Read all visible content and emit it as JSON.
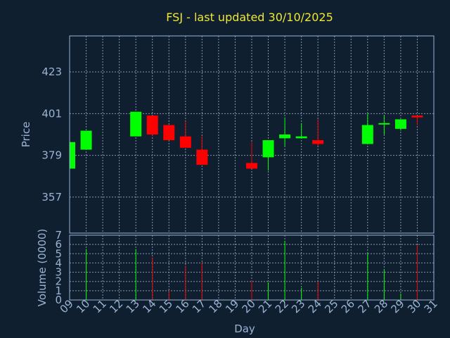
{
  "chart_data": {
    "type": "candlestick",
    "title": "FSJ - last updated 30/10/2025",
    "ylabel": "Price",
    "volume_label": "Volume (0000)",
    "xlabel": "Day",
    "price_ticks": [
      357,
      379,
      401,
      423
    ],
    "price_ylim": [
      338,
      442
    ],
    "volume_ticks": [
      0,
      1,
      2,
      3,
      4,
      5,
      6,
      7
    ],
    "volume_ylim": [
      0,
      7
    ],
    "x_ticks": [
      "09",
      "10",
      "11",
      "12",
      "13",
      "14",
      "15",
      "16",
      "17",
      "18",
      "19",
      "20",
      "21",
      "22",
      "23",
      "24",
      "25",
      "26",
      "27",
      "28",
      "29",
      "30",
      "31"
    ],
    "colors": {
      "up": "#00ff00",
      "down": "#ff0000",
      "background": "#0f1f30",
      "title": "#f0e830",
      "axis": "#9ab4d4"
    },
    "candles": [
      {
        "day": 9,
        "open": 372,
        "high": 386,
        "low": 372,
        "close": 386
      },
      {
        "day": 10,
        "open": 382,
        "high": 392,
        "low": 382,
        "close": 392
      },
      {
        "day": 13,
        "open": 389,
        "high": 402,
        "low": 389,
        "close": 402
      },
      {
        "day": 14,
        "open": 400,
        "high": 400,
        "low": 389,
        "close": 390
      },
      {
        "day": 15,
        "open": 395,
        "high": 395,
        "low": 387,
        "close": 387
      },
      {
        "day": 16,
        "open": 389,
        "high": 397,
        "low": 383,
        "close": 383
      },
      {
        "day": 17,
        "open": 382,
        "high": 389,
        "low": 374,
        "close": 374
      },
      {
        "day": 20,
        "open": 375,
        "high": 386,
        "low": 372,
        "close": 372
      },
      {
        "day": 21,
        "open": 378,
        "high": 387,
        "low": 371,
        "close": 387
      },
      {
        "day": 22,
        "open": 388,
        "high": 399,
        "low": 384,
        "close": 390
      },
      {
        "day": 23,
        "open": 388,
        "high": 396,
        "low": 388,
        "close": 389
      },
      {
        "day": 24,
        "open": 387,
        "high": 398,
        "low": 384,
        "close": 385
      },
      {
        "day": 27,
        "open": 385,
        "high": 401,
        "low": 385,
        "close": 395
      },
      {
        "day": 28,
        "open": 396,
        "high": 400,
        "low": 390,
        "close": 396
      },
      {
        "day": 29,
        "open": 393,
        "high": 398,
        "low": 392,
        "close": 398
      },
      {
        "day": 30,
        "open": 400,
        "high": 400,
        "low": 395,
        "close": 399
      }
    ],
    "volume": [
      {
        "day": 10,
        "value": 5.5,
        "color": "up"
      },
      {
        "day": 13,
        "value": 5.5,
        "color": "up"
      },
      {
        "day": 14,
        "value": 4.6,
        "color": "down"
      },
      {
        "day": 15,
        "value": 1.0,
        "color": "down"
      },
      {
        "day": 16,
        "value": 3.7,
        "color": "down"
      },
      {
        "day": 17,
        "value": 4.0,
        "color": "down"
      },
      {
        "day": 20,
        "value": 2.1,
        "color": "down"
      },
      {
        "day": 21,
        "value": 1.9,
        "color": "up"
      },
      {
        "day": 22,
        "value": 6.4,
        "color": "up"
      },
      {
        "day": 23,
        "value": 1.3,
        "color": "up"
      },
      {
        "day": 24,
        "value": 2.0,
        "color": "down"
      },
      {
        "day": 27,
        "value": 5.1,
        "color": "up"
      },
      {
        "day": 28,
        "value": 3.3,
        "color": "up"
      },
      {
        "day": 29,
        "value": 0.7,
        "color": "up"
      },
      {
        "day": 30,
        "value": 5.9,
        "color": "down"
      }
    ]
  }
}
